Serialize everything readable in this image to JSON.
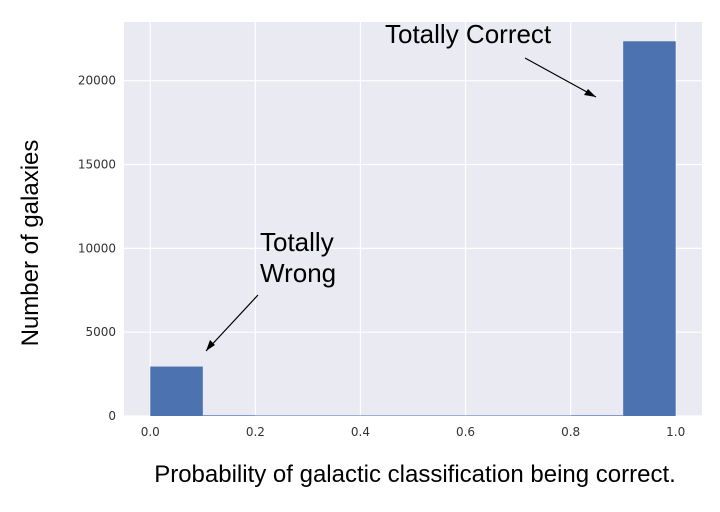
{
  "chart_data": {
    "type": "bar",
    "title": "",
    "xlabel": "Probability of galactic classification being correct.",
    "ylabel": "Number of galaxies",
    "xlim": [
      -0.05,
      1.05
    ],
    "ylim": [
      0,
      23500
    ],
    "xticks": [
      "0.0",
      "0.2",
      "0.4",
      "0.6",
      "0.8",
      "1.0"
    ],
    "yticks": [
      "0",
      "5000",
      "10000",
      "15000",
      "20000"
    ],
    "grid": true,
    "bin_edges": [
      0.0,
      0.1,
      0.2,
      0.3,
      0.4,
      0.5,
      0.6,
      0.7,
      0.8,
      0.9,
      1.0
    ],
    "values": [
      2950,
      40,
      30,
      30,
      30,
      30,
      30,
      30,
      40,
      22350
    ],
    "bar_color": "#4c72b0",
    "background_color": "#eaeaf2",
    "annotations": [
      {
        "lines": [
          "Totally",
          "Wrong"
        ],
        "points_to_x": 0.1,
        "points_to_y": 3900
      },
      {
        "lines": [
          "Totally Correct"
        ],
        "points_to_x": 0.85,
        "points_to_y": 19000
      }
    ]
  }
}
